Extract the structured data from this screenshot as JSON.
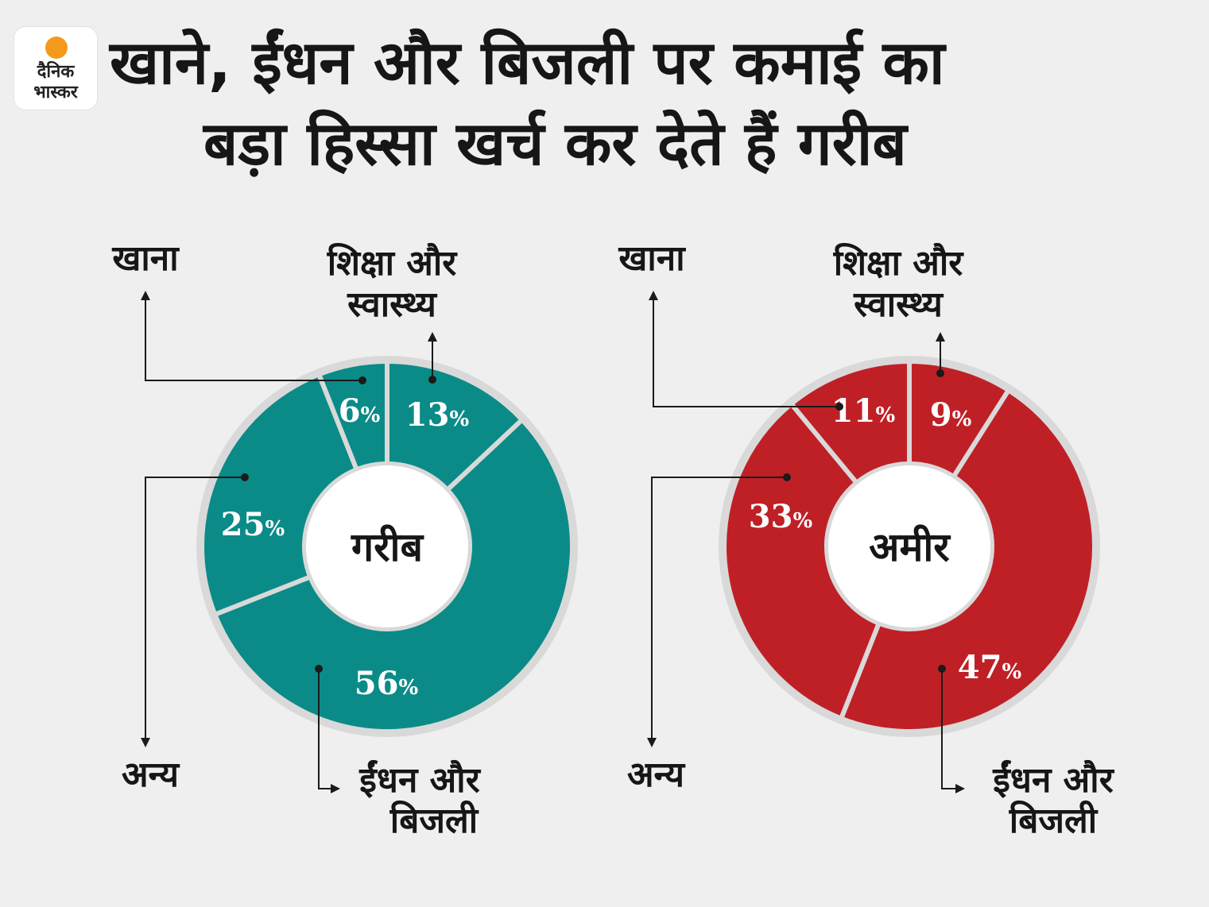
{
  "brand": {
    "line1": "दैनिक",
    "line2": "भास्कर",
    "sun_color": "#f39a1c"
  },
  "title": {
    "line1": "खाने, ईंधन और बिजली पर कमाई का",
    "line2": "बड़ा हिस्सा खर्च कर देते हैं गरीब"
  },
  "chart_data": [
    {
      "type": "pie",
      "center_label": "गरीब",
      "color": "#0b8b88",
      "slices": [
        {
          "label": "शिक्षा और स्वास्थ्य",
          "value": 13,
          "value_label": "13%"
        },
        {
          "label": "ईंधन और बिजली",
          "value": 56,
          "value_label": "56%"
        },
        {
          "label": "अन्य",
          "value": 25,
          "value_label": "25%"
        },
        {
          "label": "खाना",
          "value": 6,
          "value_label": "6%"
        }
      ]
    },
    {
      "type": "pie",
      "center_label": "अमीर",
      "color": "#bf2026",
      "slices": [
        {
          "label": "शिक्षा और स्वास्थ्य",
          "value": 9,
          "value_label": "9%"
        },
        {
          "label": "ईंधन और बिजली",
          "value": 47,
          "value_label": "47%"
        },
        {
          "label": "अन्य",
          "value": 33,
          "value_label": "33%"
        },
        {
          "label": "खाना",
          "value": 11,
          "value_label": "11%"
        }
      ]
    }
  ]
}
